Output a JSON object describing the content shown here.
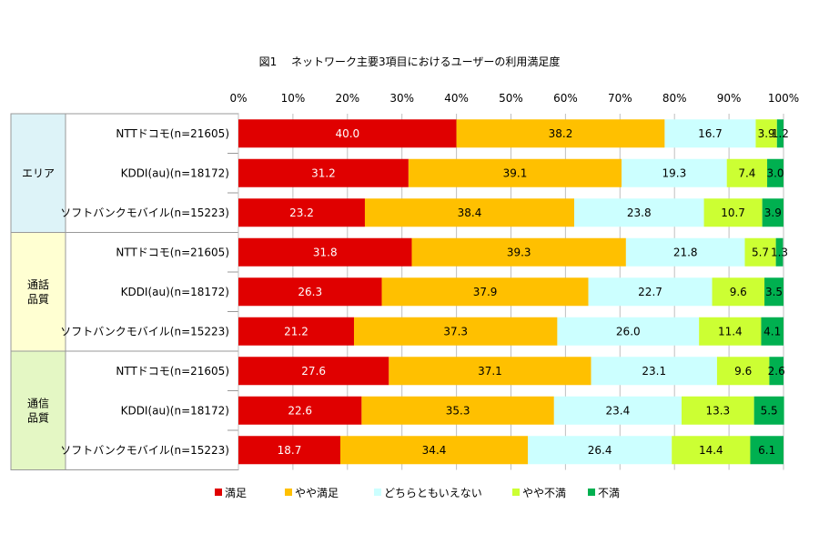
{
  "chart_data": {
    "type": "bar",
    "orientation": "horizontal",
    "stacked": "percent",
    "title": "図1　 ネットワーク主要3項目におけるユーザーの利用満足度",
    "x_ticks": [
      "0%",
      "10%",
      "20%",
      "30%",
      "40%",
      "50%",
      "60%",
      "70%",
      "80%",
      "90%",
      "100%"
    ],
    "xlim": [
      0,
      100
    ],
    "grid": true,
    "legend_position": "bottom",
    "series": [
      {
        "name": "満足",
        "color": "#e00000"
      },
      {
        "name": "やや満足",
        "color": "#ffc000"
      },
      {
        "name": "どちらともいえない",
        "color": "#ccffff"
      },
      {
        "name": "やや不満",
        "color": "#ccff33"
      },
      {
        "name": "不満",
        "color": "#00b050"
      }
    ],
    "groups": [
      {
        "label": [
          "エリア"
        ],
        "bg": "#ddf3f8",
        "rows": [
          {
            "label": "NTTドコモ(n=21605)",
            "values": [
              40.0,
              38.2,
              16.7,
              3.9,
              1.2
            ],
            "labels": [
              "40.0",
              "38.2",
              "16.7",
              "3.9",
              "1.2"
            ]
          },
          {
            "label": "KDDI(au)(n=18172)",
            "values": [
              31.2,
              39.1,
              19.3,
              7.4,
              3.0
            ],
            "labels": [
              "31.2",
              "39.1",
              "19.3",
              "7.4",
              "3.0"
            ]
          },
          {
            "label": "ソフトバンクモバイル(n=15223)",
            "values": [
              23.2,
              38.4,
              23.8,
              10.7,
              3.9
            ],
            "labels": [
              "23.2",
              "38.4",
              "23.8",
              "10.7",
              "3.9"
            ]
          }
        ]
      },
      {
        "label": [
          "通話",
          "品質"
        ],
        "bg": "#ffffd2",
        "rows": [
          {
            "label": "NTTドコモ(n=21605)",
            "values": [
              31.8,
              39.3,
              21.8,
              5.7,
              1.3
            ],
            "labels": [
              "31.8",
              "39.3",
              "21.8",
              "5.7",
              "1.3"
            ]
          },
          {
            "label": "KDDI(au)(n=18172)",
            "values": [
              26.3,
              37.9,
              22.7,
              9.6,
              3.5
            ],
            "labels": [
              "26.3",
              "37.9",
              "22.7",
              "9.6",
              "3.5"
            ]
          },
          {
            "label": "ソフトバンクモバイル(n=15223)",
            "values": [
              21.2,
              37.3,
              26.0,
              11.4,
              4.1
            ],
            "labels": [
              "21.2",
              "37.3",
              "26.0",
              "11.4",
              "4.1"
            ]
          }
        ]
      },
      {
        "label": [
          "通信",
          "品質"
        ],
        "bg": "#e4f7c4",
        "rows": [
          {
            "label": "NTTドコモ(n=21605)",
            "values": [
              27.6,
              37.1,
              23.1,
              9.6,
              2.6
            ],
            "labels": [
              "27.6",
              "37.1",
              "23.1",
              "9.6",
              "2.6"
            ]
          },
          {
            "label": "KDDI(au)(n=18172)",
            "values": [
              22.6,
              35.3,
              23.4,
              13.3,
              5.5
            ],
            "labels": [
              "22.6",
              "35.3",
              "23.4",
              "13.3",
              "5.5"
            ]
          },
          {
            "label": "ソフトバンクモバイル(n=15223)",
            "values": [
              18.7,
              34.4,
              26.4,
              14.4,
              6.1
            ],
            "labels": [
              "18.7",
              "34.4",
              "26.4",
              "14.4",
              "6.1"
            ]
          }
        ]
      }
    ]
  }
}
